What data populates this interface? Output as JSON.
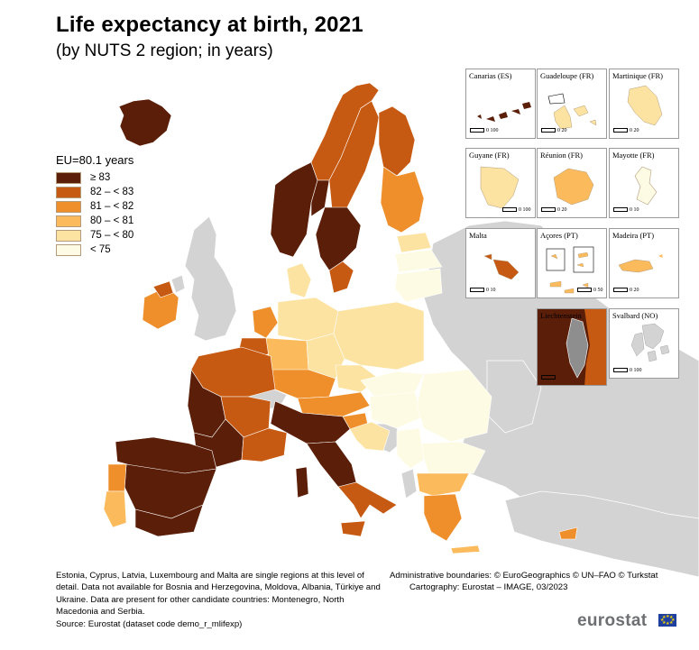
{
  "title": "Life expectancy at birth, 2021",
  "subtitle": "(by NUTS 2 region; in years)",
  "legend": {
    "title": "EU=80.1 years",
    "items": [
      {
        "label": "≥ 83",
        "color": "#5b1e08"
      },
      {
        "label": "82 – < 83",
        "color": "#c75a12"
      },
      {
        "label": "81 – < 82",
        "color": "#ee8f2c"
      },
      {
        "label": "80 – < 81",
        "color": "#fbbb5c"
      },
      {
        "label": "75 – < 80",
        "color": "#fde3a1"
      },
      {
        "label": "< 75",
        "color": "#fefbe4"
      }
    ]
  },
  "insets": [
    {
      "label": "Canarias (ES)",
      "scale": "0   100"
    },
    {
      "label": "Guadeloupe (FR)",
      "scale": "0   20"
    },
    {
      "label": "Martinique (FR)",
      "scale": "0   20"
    },
    {
      "label": "Guyane (FR)",
      "scale": "0   100"
    },
    {
      "label": "Réunion (FR)",
      "scale": "0   20"
    },
    {
      "label": "Mayotte (FR)",
      "scale": "0   10"
    },
    {
      "label": "Malta",
      "scale": "0   10"
    },
    {
      "label": "Açores (PT)",
      "scale": "0   50"
    },
    {
      "label": "Madeira (PT)",
      "scale": "0   20"
    },
    {
      "label": "Liechtenstein",
      "scale": "0   5"
    },
    {
      "label": "Svalbard (NO)",
      "scale": "0   100"
    }
  ],
  "footnote": "Estonia, Cyprus, Latvia, Luxembourg and Malta are single regions at this level of detail. Data not available for Bosnia and Herzegovina, Moldova, Albania, Türkiye and Ukraine. Data are present for other candidate countries: Montenegro, North Macedonia and Serbia.",
  "source": "Source: Eurostat (dataset code demo_r_mlifexp)",
  "credits": {
    "line1": "Administrative boundaries: © EuroGeographics © UN–FAO © Turkstat",
    "line2": "Cartography: Eurostat – IMAGE, 03/2023"
  },
  "brand": "eurostat",
  "colors": {
    "no_data": "#d3d3d3",
    "sea": "#ffffff",
    "border": "#8a6a4a"
  }
}
